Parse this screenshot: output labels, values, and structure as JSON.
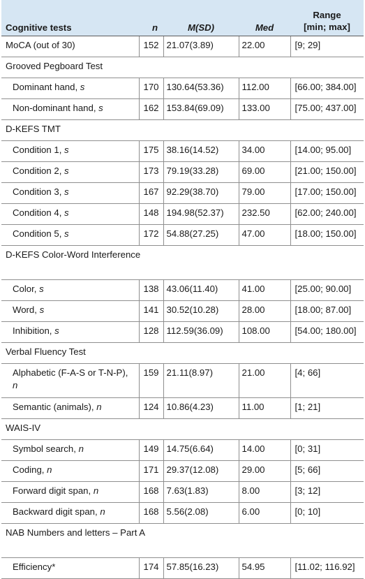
{
  "header": {
    "test": "Cognitive tests",
    "n": "n",
    "msd": "M(SD)",
    "med": "Med",
    "range_line1": "Range",
    "range_line2": "[min; max]"
  },
  "rows": [
    {
      "type": "row",
      "label": "MoCA (out of 30)",
      "unit": "",
      "n": "152",
      "msd": "21.07(3.89)",
      "med": "22.00",
      "range": "[9; 29]"
    },
    {
      "type": "group",
      "label": "Grooved Pegboard Test"
    },
    {
      "type": "sub",
      "label": "Dominant hand, ",
      "unit": "s",
      "n": "170",
      "msd": "130.64(53.36)",
      "med": "112.00",
      "range": "[66.00; 384.00]"
    },
    {
      "type": "sub",
      "label": "Non-dominant hand, ",
      "unit": "s",
      "n": "162",
      "msd": "153.84(69.09)",
      "med": "133.00",
      "range": "[75.00; 437.00]"
    },
    {
      "type": "group",
      "label": "D-KEFS TMT"
    },
    {
      "type": "sub",
      "label": "Condition 1, ",
      "unit": "s",
      "n": "175",
      "msd": "38.16(14.52)",
      "med": "34.00",
      "range": "[14.00; 95.00]"
    },
    {
      "type": "sub",
      "label": "Condition 2, ",
      "unit": "s",
      "n": "173",
      "msd": "79.19(33.28)",
      "med": "69.00",
      "range": "[21.00; 150.00]"
    },
    {
      "type": "sub",
      "label": "Condition 3, ",
      "unit": "s",
      "n": "167",
      "msd": "92.29(38.70)",
      "med": "79.00",
      "range": "[17.00; 150.00]"
    },
    {
      "type": "sub",
      "label": "Condition 4, ",
      "unit": "s",
      "n": "148",
      "msd": "194.98(52.37)",
      "med": "232.50",
      "range": "[62.00; 240.00]"
    },
    {
      "type": "sub",
      "label": "Condition 5, ",
      "unit": "s",
      "n": "172",
      "msd": "54.88(27.25)",
      "med": "47.00",
      "range": "[18.00; 150.00]"
    },
    {
      "type": "group",
      "label": "D-KEFS Color-Word Interference",
      "tall": true
    },
    {
      "type": "sub",
      "label": "Color, ",
      "unit": "s",
      "n": "138",
      "msd": "43.06(11.40)",
      "med": "41.00",
      "range": "[25.00; 90.00]"
    },
    {
      "type": "sub",
      "label": "Word, ",
      "unit": "s",
      "n": "141",
      "msd": "30.52(10.28)",
      "med": "28.00",
      "range": "[18.00; 87.00]"
    },
    {
      "type": "sub",
      "label": "Inhibition, ",
      "unit": "s",
      "n": "128",
      "msd": "112.59(36.09)",
      "med": "108.00",
      "range": "[54.00; 180.00]"
    },
    {
      "type": "group",
      "label": "Verbal Fluency Test"
    },
    {
      "type": "sub",
      "label": "Alphabetic (F-A-S or T-N-P), ",
      "unit": "n",
      "n": "159",
      "msd": "21.11(8.97)",
      "med": "21.00",
      "range": "[4; 66]",
      "tall": true
    },
    {
      "type": "sub",
      "label": "Semantic (animals), ",
      "unit": "n",
      "n": "124",
      "msd": "10.86(4.23)",
      "med": "11.00",
      "range": "[1; 21]"
    },
    {
      "type": "group",
      "label": "WAIS-IV"
    },
    {
      "type": "sub",
      "label": "Symbol search, ",
      "unit": "n",
      "n": "149",
      "msd": "14.75(6.64)",
      "med": "14.00",
      "range": "[0; 31]"
    },
    {
      "type": "sub",
      "label": "Coding, ",
      "unit": "n",
      "n": "171",
      "msd": "29.37(12.08)",
      "med": "29.00",
      "range": "[5; 66]"
    },
    {
      "type": "sub",
      "label": "Forward digit span, ",
      "unit": "n",
      "n": "168",
      "msd": "7.63(1.83)",
      "med": "8.00",
      "range": "[3; 12]"
    },
    {
      "type": "sub",
      "label": "Backward digit span, ",
      "unit": "n",
      "n": "168",
      "msd": "5.56(2.08)",
      "med": "6.00",
      "range": "[0; 10]"
    },
    {
      "type": "group",
      "label": "NAB Numbers and letters – Part A",
      "tall": true
    },
    {
      "type": "sub",
      "label": "Efficiency*",
      "unit": "",
      "n": "174",
      "msd": "57.85(16.23)",
      "med": "54.95",
      "range": "[11.02; 116.92]"
    }
  ]
}
